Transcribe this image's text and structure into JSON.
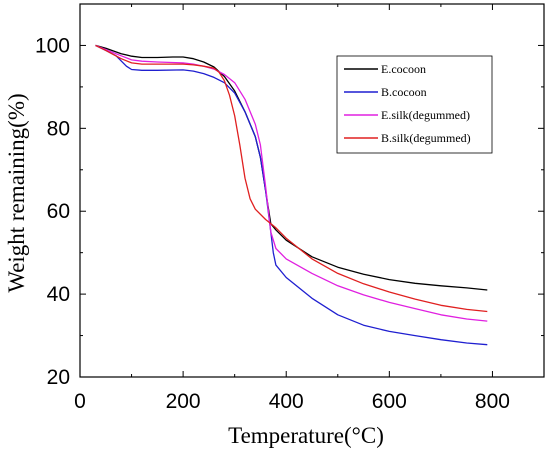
{
  "chart_data": {
    "type": "line",
    "xlabel": "Temperature(°C)",
    "ylabel": "Weight remaining(%)",
    "xlim": [
      0,
      900
    ],
    "ylim": [
      20,
      110
    ],
    "x_ticks": [
      0,
      200,
      400,
      600,
      800
    ],
    "y_ticks": [
      20,
      40,
      60,
      80,
      100
    ],
    "x_tick_labels": [
      "0",
      "200",
      "400",
      "600",
      "800"
    ],
    "y_tick_labels": [
      "20",
      "40",
      "60",
      "80",
      "100"
    ],
    "legend_position": "top-right",
    "series": [
      {
        "name": "E.cocoon",
        "color": "#000000",
        "x": [
          30,
          50,
          80,
          100,
          120,
          150,
          180,
          200,
          220,
          240,
          260,
          280,
          300,
          320,
          340,
          350,
          360,
          370,
          380,
          400,
          450,
          500,
          550,
          600,
          650,
          700,
          750,
          790
        ],
        "y": [
          100,
          99.3,
          98,
          97.4,
          97.1,
          97.1,
          97.2,
          97.2,
          96.8,
          96,
          94.8,
          92.5,
          89,
          84,
          78,
          73,
          65,
          57,
          55.5,
          53,
          49,
          46.5,
          44.8,
          43.5,
          42.6,
          42,
          41.5,
          41
        ]
      },
      {
        "name": "B.cocoon",
        "color": "#1f1fd0",
        "x": [
          30,
          50,
          70,
          90,
          100,
          120,
          150,
          200,
          220,
          240,
          260,
          280,
          300,
          320,
          340,
          350,
          360,
          370,
          375,
          380,
          400,
          450,
          500,
          550,
          600,
          650,
          700,
          750,
          790
        ],
        "y": [
          100,
          98.8,
          97.5,
          95,
          94.2,
          94,
          94,
          94.1,
          93.8,
          93.2,
          92.3,
          91,
          88.5,
          84,
          78,
          73,
          65,
          55,
          50,
          47,
          44,
          39,
          35,
          32.5,
          31,
          30,
          29,
          28.2,
          27.8
        ]
      },
      {
        "name": "E.silk(degummed)",
        "color": "#e020e0",
        "x": [
          30,
          50,
          80,
          100,
          120,
          150,
          200,
          220,
          240,
          260,
          280,
          300,
          320,
          340,
          350,
          360,
          370,
          380,
          400,
          450,
          500,
          550,
          600,
          650,
          700,
          750,
          790
        ],
        "y": [
          100,
          99,
          97.5,
          96.5,
          96.2,
          96,
          95.8,
          95.5,
          95,
          94.3,
          93,
          91,
          87,
          81,
          76,
          66,
          55,
          51,
          48.5,
          45,
          42,
          39.8,
          38,
          36.5,
          35,
          34,
          33.5
        ]
      },
      {
        "name": "B.silk(degummed)",
        "color": "#e02020",
        "x": [
          30,
          50,
          80,
          100,
          120,
          150,
          200,
          220,
          240,
          260,
          270,
          280,
          290,
          300,
          310,
          320,
          330,
          340,
          360,
          380,
          400,
          450,
          500,
          550,
          600,
          650,
          700,
          750,
          790
        ],
        "y": [
          100,
          98.8,
          96.8,
          95.8,
          95.5,
          95.5,
          95.5,
          95.3,
          95,
          94.5,
          93.5,
          91.5,
          88,
          83,
          76,
          68,
          63,
          60.5,
          58,
          56,
          53.5,
          48.5,
          45,
          42.5,
          40.5,
          38.8,
          37.3,
          36.3,
          35.8
        ]
      }
    ]
  }
}
